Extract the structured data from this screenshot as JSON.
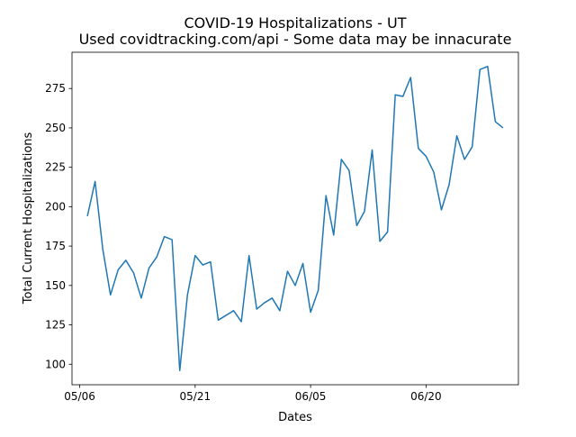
{
  "chart_data": {
    "type": "line",
    "title": "COVID-19 Hospitalizations - UT",
    "subtitle": "Used covidtracking.com/api - Some data may be innacurate",
    "xlabel": "Dates",
    "ylabel": "Total Current Hospitalizations",
    "x_start": "2020-05-07",
    "x_end": "2020-06-30",
    "xlim": [
      "2020-05-05",
      "2020-07-02"
    ],
    "ylim": [
      87,
      298
    ],
    "x_ticks": [
      {
        "date": "2020-05-06",
        "label": "05/06"
      },
      {
        "date": "2020-05-21",
        "label": "05/21"
      },
      {
        "date": "2020-06-05",
        "label": "06/05"
      },
      {
        "date": "2020-06-20",
        "label": "06/20"
      }
    ],
    "y_ticks": [
      100,
      125,
      150,
      175,
      200,
      225,
      250,
      275
    ],
    "grid": false,
    "line_color": "#1f77b4",
    "series": [
      {
        "values": [
          194,
          216,
          173,
          144,
          160,
          166,
          158,
          142,
          161,
          168,
          181,
          179,
          96,
          144,
          169,
          163,
          165,
          128,
          131,
          134,
          127,
          169,
          135,
          139,
          142,
          134,
          159,
          150,
          164,
          133,
          147,
          207,
          182,
          230,
          223,
          188,
          197,
          236,
          178,
          184,
          271,
          270,
          282,
          237,
          232,
          222,
          198,
          214,
          245,
          230,
          238,
          287,
          289,
          254,
          250
        ]
      }
    ]
  }
}
